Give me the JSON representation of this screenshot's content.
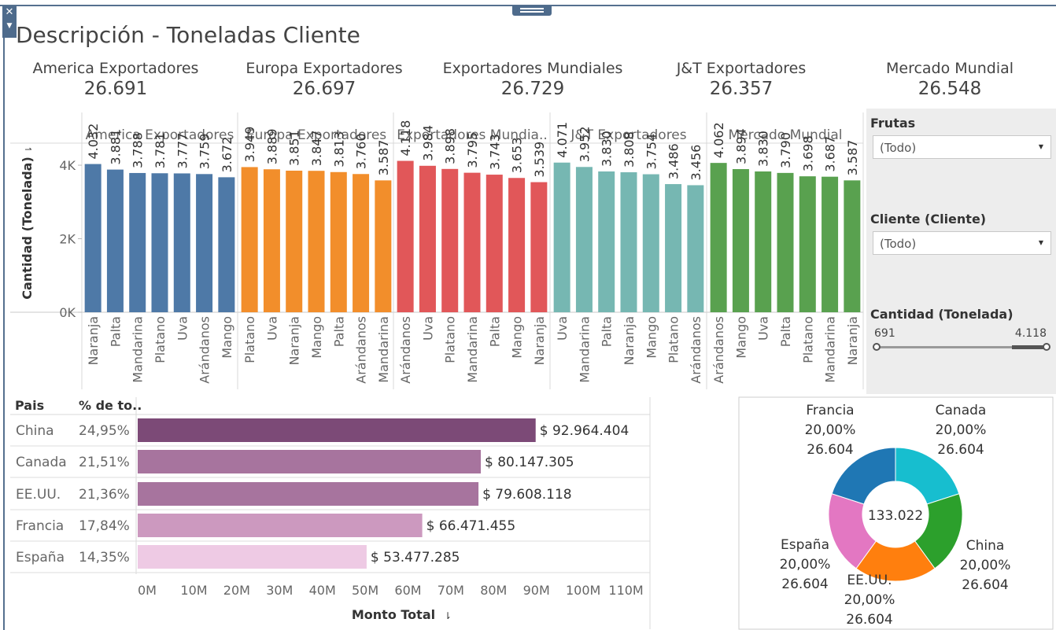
{
  "title": "Descripción - Toneladas Cliente",
  "kpis": [
    {
      "name": "America Exportadores",
      "value": "26.691"
    },
    {
      "name": "Europa Exportadores",
      "value": "26.697"
    },
    {
      "name": "Exportadores Mundiales",
      "value": "26.729"
    },
    {
      "name": "J&T Exportadores",
      "value": "26.357"
    },
    {
      "name": "Mercado Mundial",
      "value": "26.548"
    }
  ],
  "filters": {
    "frutas_label": "Frutas",
    "frutas_value": "(Todo)",
    "cliente_label": "Cliente (Cliente)",
    "cliente_value": "(Todo)",
    "cantidad_label": "Cantidad (Tonelada)",
    "range_min": "691",
    "range_max": "4.118"
  },
  "chart_data": [
    {
      "type": "bar",
      "ylabel": "Cantidad (Tonelada)",
      "yticks": [
        "0K",
        "2K",
        "4K"
      ],
      "ylim": [
        0,
        4600
      ],
      "panels": [
        {
          "name": "America Exportadores",
          "color": "#4e79a7",
          "categories": [
            "Naranja",
            "Palta",
            "Mandarina",
            "Platano",
            "Uva",
            "Arándanos",
            "Mango"
          ],
          "values": [
            4032,
            3881,
            3788,
            3781,
            3777,
            3759,
            3672
          ],
          "labels": [
            "4.032",
            "3.881",
            "3.788",
            "3.781",
            "3.777",
            "3.759",
            "3.672"
          ]
        },
        {
          "name": "Europa Exportadores",
          "color": "#f28e2b",
          "categories": [
            "Platano",
            "Uva",
            "Naranja",
            "Mango",
            "Palta",
            "Arándanos",
            "Mandarina"
          ],
          "values": [
            3949,
            3889,
            3851,
            3847,
            3813,
            3760,
            3587
          ],
          "labels": [
            "3.949",
            "3.889",
            "3.851",
            "3.847",
            "3.813",
            "3.760",
            "3.587"
          ]
        },
        {
          "name": "Exportadores Mundia..",
          "color": "#e15759",
          "categories": [
            "Arándanos",
            "Uva",
            "Platano",
            "Mandarina",
            "Palta",
            "Mango",
            "Naranja"
          ],
          "values": [
            4118,
            3984,
            3898,
            3795,
            3743,
            3653,
            3539
          ],
          "labels": [
            "4.118",
            "3.984",
            "3.898",
            "3.795",
            "3.743",
            "3.653",
            "3.539"
          ]
        },
        {
          "name": "J&T Exportadores",
          "color": "#76b7b2",
          "categories": [
            "Uva",
            "Mandarina",
            "Palta",
            "Naranja",
            "Mango",
            "Platano",
            "Arándanos"
          ],
          "values": [
            4071,
            3952,
            3830,
            3808,
            3754,
            3486,
            3456
          ],
          "labels": [
            "4.071",
            "3.952",
            "3.830",
            "3.808",
            "3.754",
            "3.486",
            "3.456"
          ]
        },
        {
          "name": "Mercado Mundial",
          "color": "#59a14f",
          "categories": [
            "Arándanos",
            "Mango",
            "Uva",
            "Palta",
            "Platano",
            "Mandarina",
            "Naranja"
          ],
          "values": [
            4062,
            3894,
            3830,
            3790,
            3698,
            3687,
            3587
          ],
          "labels": [
            "4.062",
            "3.894",
            "3.830",
            "3.790",
            "3.698",
            "3.687",
            "3.587"
          ]
        }
      ]
    },
    {
      "type": "bar",
      "orientation": "horizontal",
      "col_headers": [
        "Pais",
        "% de to.."
      ],
      "xlabel": "Monto Total",
      "xlim": [
        0,
        120000000
      ],
      "xticks": [
        "0M",
        "10M",
        "20M",
        "30M",
        "40M",
        "50M",
        "60M",
        "70M",
        "80M",
        "90M",
        "100M",
        "110M"
      ],
      "categories": [
        "China",
        "Canada",
        "EE.UU.",
        "Francia",
        "España"
      ],
      "percents": [
        "24,95%",
        "21,51%",
        "21,36%",
        "17,84%",
        "14,35%"
      ],
      "values": [
        92964404,
        80147305,
        79608118,
        66471455,
        53477285
      ],
      "labels": [
        "$ 92.964.404",
        "$ 80.147.305",
        "$ 79.608.118",
        "$ 66.471.455",
        "$ 53.477.285"
      ],
      "colors": [
        "#7c4a77",
        "#a7749e",
        "#a7749e",
        "#cc99bf",
        "#eecae4"
      ]
    },
    {
      "type": "pie",
      "center_label": "133.022",
      "slices": [
        {
          "name": "Canada",
          "percent": "20,00%",
          "value": 26604,
          "value_label": "26.604",
          "color": "#17becf"
        },
        {
          "name": "China",
          "percent": "20,00%",
          "value": 26604,
          "value_label": "26.604",
          "color": "#2ca02c"
        },
        {
          "name": "EE.UU.",
          "percent": "20,00%",
          "value": 26604,
          "value_label": "26.604",
          "color": "#ff7f0e"
        },
        {
          "name": "España",
          "percent": "20,00%",
          "value": 26604,
          "value_label": "26.604",
          "color": "#e377c2"
        },
        {
          "name": "Francia",
          "percent": "20,00%",
          "value": 26604,
          "value_label": "26.604",
          "color": "#1f77b4"
        }
      ]
    }
  ]
}
